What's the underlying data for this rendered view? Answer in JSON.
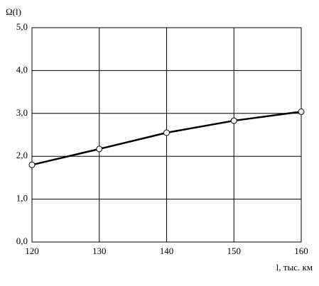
{
  "chart_data": {
    "type": "line",
    "y_label": "Ω(l)",
    "x_label": "l, тыс. км",
    "x": [
      120,
      130,
      140,
      150,
      160
    ],
    "series": [
      {
        "color": "#000000",
        "values": [
          1.8,
          2.17,
          2.55,
          2.83,
          3.04
        ]
      }
    ],
    "xlim": [
      120,
      160
    ],
    "xticks": [
      120,
      130,
      140,
      150,
      160
    ],
    "ylim": [
      0,
      5
    ],
    "yticks": [
      {
        "value": 0,
        "label": "0,0"
      },
      {
        "value": 1,
        "label": "1,0"
      },
      {
        "value": 2,
        "label": "2,0"
      },
      {
        "value": 3,
        "label": "3,0"
      },
      {
        "value": 4,
        "label": "4,0"
      },
      {
        "value": 5,
        "label": "5,0"
      }
    ],
    "grid": true
  }
}
